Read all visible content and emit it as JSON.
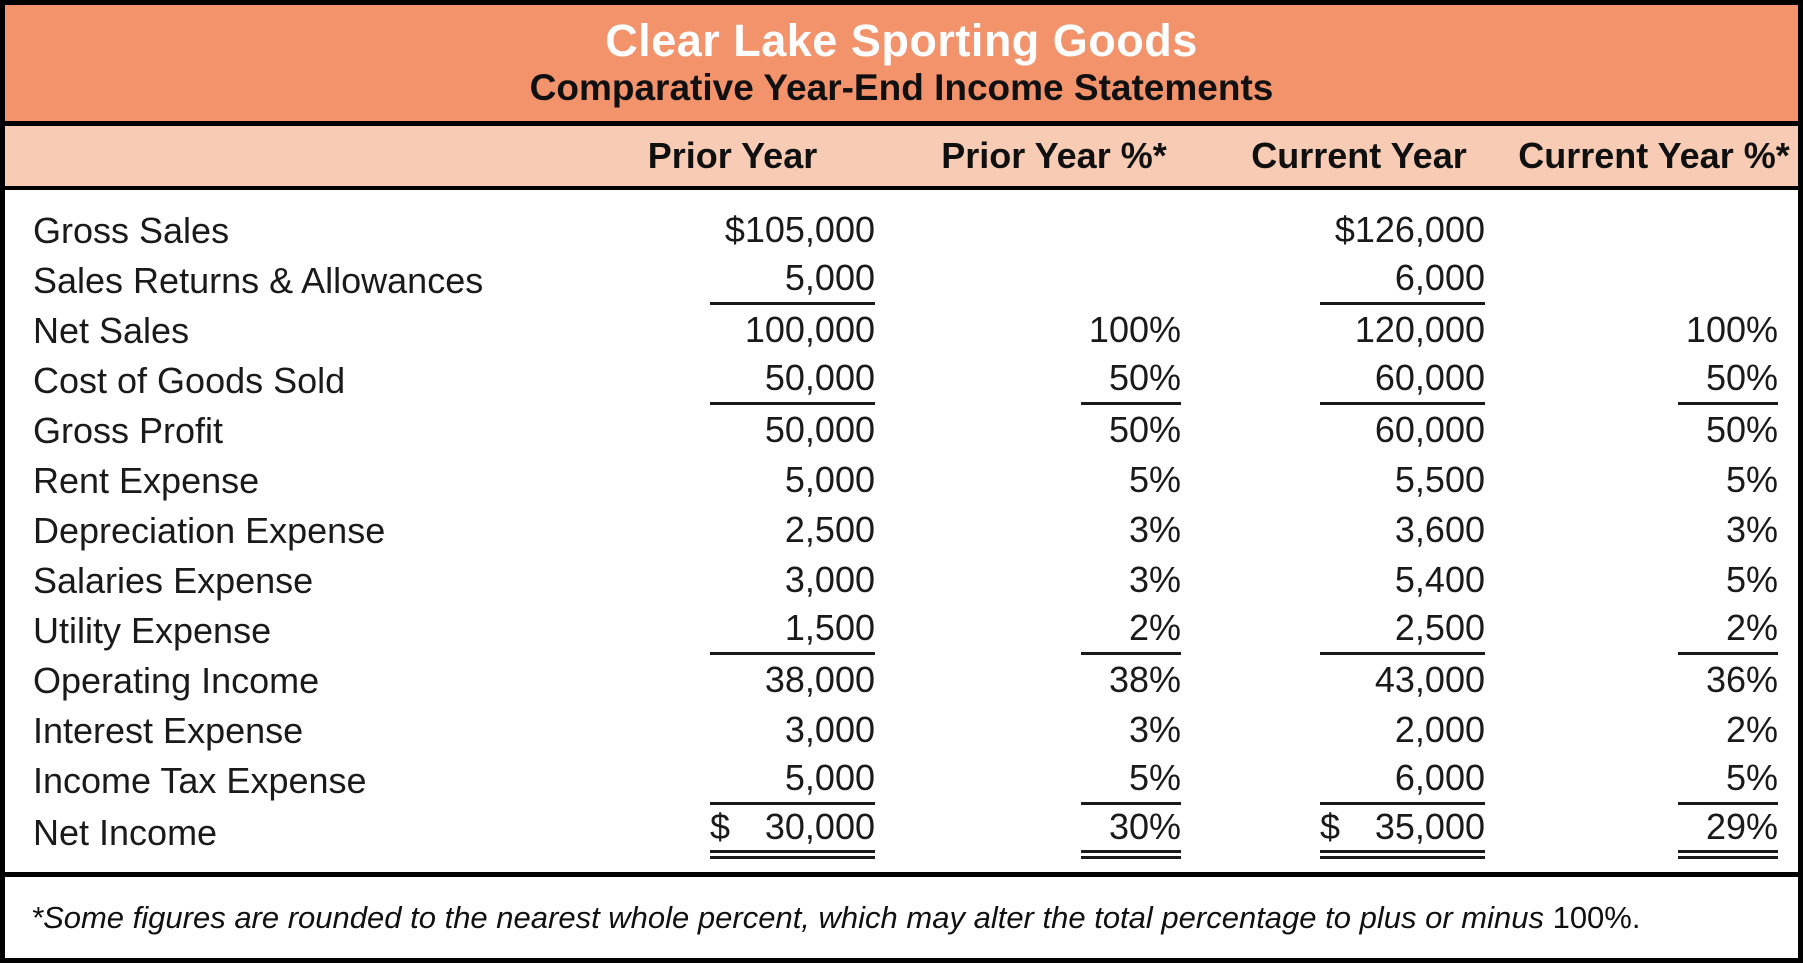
{
  "header": {
    "title": "Clear Lake Sporting Goods",
    "subtitle": "Comparative Year-End Income Statements"
  },
  "table": {
    "columns": [
      "Prior Year",
      "Prior Year %*",
      "Current Year",
      "Current Year %*"
    ],
    "rows": [
      {
        "label": "Gross Sales",
        "py": "$105,000",
        "pypct": "",
        "cy": "$126,000",
        "cypct": "",
        "rule": "none"
      },
      {
        "label": "Sales Returns & Allowances",
        "py": "5,000",
        "pypct": "",
        "cy": "6,000",
        "cypct": "",
        "rule": "amounts"
      },
      {
        "label": "Net Sales",
        "py": "100,000",
        "pypct": "100%",
        "cy": "120,000",
        "cypct": "100%",
        "rule": "none"
      },
      {
        "label": "Cost of Goods Sold",
        "py": "50,000",
        "pypct": "50%",
        "cy": "60,000",
        "cypct": "50%",
        "rule": "all"
      },
      {
        "label": "Gross Profit",
        "py": "50,000",
        "pypct": "50%",
        "cy": "60,000",
        "cypct": "50%",
        "rule": "none"
      },
      {
        "label": "Rent Expense",
        "py": "5,000",
        "pypct": "5%",
        "cy": "5,500",
        "cypct": "5%",
        "rule": "none"
      },
      {
        "label": "Depreciation Expense",
        "py": "2,500",
        "pypct": "3%",
        "cy": "3,600",
        "cypct": "3%",
        "rule": "none"
      },
      {
        "label": "Salaries Expense",
        "py": "3,000",
        "pypct": "3%",
        "cy": "5,400",
        "cypct": "5%",
        "rule": "none"
      },
      {
        "label": "Utility Expense",
        "py": "1,500",
        "pypct": "2%",
        "cy": "2,500",
        "cypct": "2%",
        "rule": "all"
      },
      {
        "label": "Operating Income",
        "py": "38,000",
        "pypct": "38%",
        "cy": "43,000",
        "cypct": "36%",
        "rule": "none"
      },
      {
        "label": "Interest Expense",
        "py": "3,000",
        "pypct": "3%",
        "cy": "2,000",
        "cypct": "2%",
        "rule": "none"
      },
      {
        "label": "Income Tax Expense",
        "py": "5,000",
        "pypct": "5%",
        "cy": "6,000",
        "cypct": "5%",
        "rule": "all"
      },
      {
        "label": "Net Income",
        "py": "$ 30,000",
        "pypct": "30%",
        "cy": "$ 35,000",
        "cypct": "29%",
        "rule": "double"
      }
    ]
  },
  "footnote": {
    "italic_text": "*Some figures are rounded to the nearest whole percent, which may alter the total percentage to plus or minus ",
    "upright_text": "100%."
  },
  "colors": {
    "header_bg": "#F2936B",
    "subheader_bg": "#F8CCB4",
    "border": "#000000",
    "title_text": "#FFFFFF",
    "body_text": "#1A1A1A"
  },
  "chart_data": {
    "type": "table",
    "title": "Clear Lake Sporting Goods",
    "subtitle": "Comparative Year-End Income Statements",
    "columns": [
      "Prior Year",
      "Prior Year %*",
      "Current Year",
      "Current Year %*"
    ],
    "rows": [
      {
        "label": "Gross Sales",
        "prior_year": 105000,
        "prior_year_pct": null,
        "current_year": 126000,
        "current_year_pct": null
      },
      {
        "label": "Sales Returns & Allowances",
        "prior_year": 5000,
        "prior_year_pct": null,
        "current_year": 6000,
        "current_year_pct": null
      },
      {
        "label": "Net Sales",
        "prior_year": 100000,
        "prior_year_pct": 100,
        "current_year": 120000,
        "current_year_pct": 100
      },
      {
        "label": "Cost of Goods Sold",
        "prior_year": 50000,
        "prior_year_pct": 50,
        "current_year": 60000,
        "current_year_pct": 50
      },
      {
        "label": "Gross Profit",
        "prior_year": 50000,
        "prior_year_pct": 50,
        "current_year": 60000,
        "current_year_pct": 50
      },
      {
        "label": "Rent Expense",
        "prior_year": 5000,
        "prior_year_pct": 5,
        "current_year": 5500,
        "current_year_pct": 5
      },
      {
        "label": "Depreciation Expense",
        "prior_year": 2500,
        "prior_year_pct": 3,
        "current_year": 3600,
        "current_year_pct": 3
      },
      {
        "label": "Salaries Expense",
        "prior_year": 3000,
        "prior_year_pct": 3,
        "current_year": 5400,
        "current_year_pct": 5
      },
      {
        "label": "Utility Expense",
        "prior_year": 1500,
        "prior_year_pct": 2,
        "current_year": 2500,
        "current_year_pct": 2
      },
      {
        "label": "Operating Income",
        "prior_year": 38000,
        "prior_year_pct": 38,
        "current_year": 43000,
        "current_year_pct": 36
      },
      {
        "label": "Interest Expense",
        "prior_year": 3000,
        "prior_year_pct": 3,
        "current_year": 2000,
        "current_year_pct": 2
      },
      {
        "label": "Income Tax Expense",
        "prior_year": 5000,
        "prior_year_pct": 5,
        "current_year": 6000,
        "current_year_pct": 5
      },
      {
        "label": "Net Income",
        "prior_year": 30000,
        "prior_year_pct": 30,
        "current_year": 35000,
        "current_year_pct": 29
      }
    ]
  }
}
